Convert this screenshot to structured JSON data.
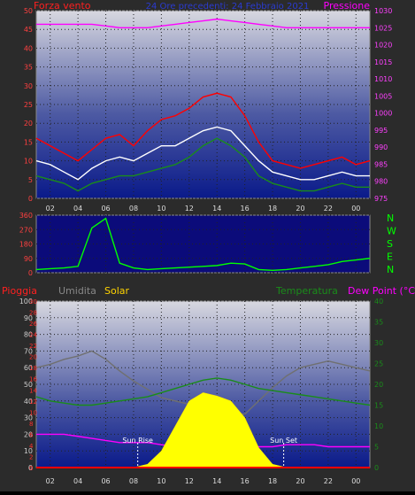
{
  "header": {
    "left_title": "Forza vento",
    "center_title": "24 Ore precedenti: 24 Febbraio 2021",
    "right_title": "Pressione"
  },
  "colors": {
    "wind_gust": "#ff0000",
    "wind_avg": "#1a8c1a",
    "wind_speed": "#ffffff",
    "pressure": "#ff00ff",
    "direction": "#00ff00",
    "humidity": "#707070",
    "temperature": "#1a8c1a",
    "dewpoint": "#ff00ff",
    "solar": "#ffff00",
    "rain": "#ff0000"
  },
  "x_tick_labels": [
    "02",
    "04",
    "06",
    "08",
    "10",
    "12",
    "14",
    "16",
    "18",
    "20",
    "22",
    "00"
  ],
  "chart_data": [
    {
      "type": "line",
      "title": "24 Ore precedenti: 24 Febbraio 2021",
      "ylabel": "Forza vento",
      "y2label": "Pressione",
      "ylim": [
        0,
        50
      ],
      "y2lim": [
        975,
        1030
      ],
      "y_ticks": [
        0,
        5,
        10,
        15,
        20,
        25,
        30,
        35,
        40,
        45,
        50
      ],
      "y2_ticks": [
        975,
        980,
        985,
        990,
        995,
        1000,
        1005,
        1010,
        1015,
        1020,
        1025,
        1030
      ],
      "x": [
        0,
        1,
        2,
        3,
        4,
        5,
        6,
        7,
        8,
        9,
        10,
        11,
        12,
        13,
        14,
        15,
        16,
        17,
        18,
        19,
        20,
        21,
        22,
        23,
        24
      ],
      "series": [
        {
          "name": "gust",
          "color": "#ff0000",
          "values": [
            16,
            14,
            12,
            10,
            13,
            16,
            17,
            14,
            18,
            21,
            22,
            24,
            27,
            28,
            27,
            22,
            15,
            10,
            9,
            8,
            9,
            10,
            11,
            9,
            10
          ]
        },
        {
          "name": "speed",
          "color": "#ffffff",
          "values": [
            10,
            9,
            7,
            5,
            8,
            10,
            11,
            10,
            12,
            14,
            14,
            16,
            18,
            19,
            18,
            14,
            10,
            7,
            6,
            5,
            5,
            6,
            7,
            6,
            6
          ]
        },
        {
          "name": "avg",
          "color": "#1a8c1a",
          "values": [
            6,
            5,
            4,
            2,
            4,
            5,
            6,
            6,
            7,
            8,
            9,
            11,
            14,
            16,
            14,
            11,
            6,
            4,
            3,
            2,
            2,
            3,
            4,
            3,
            3
          ]
        },
        {
          "name": "pressure",
          "axis": "right",
          "color": "#ff00ff",
          "values": [
            1026,
            1026,
            1026,
            1026,
            1026,
            1025.5,
            1025,
            1025,
            1025,
            1025.5,
            1026,
            1026.5,
            1027,
            1027.5,
            1027,
            1026.5,
            1026,
            1025.5,
            1025,
            1025,
            1025,
            1025,
            1025,
            1025,
            1025
          ]
        }
      ]
    },
    {
      "type": "line",
      "ylabel": "",
      "ylim": [
        0,
        360
      ],
      "y_ticks": [
        0,
        90,
        180,
        270,
        360
      ],
      "compass_labels": [
        "N",
        "W",
        "S",
        "E",
        "N"
      ],
      "x": [
        0,
        1,
        2,
        3,
        4,
        5,
        6,
        7,
        8,
        9,
        10,
        11,
        12,
        13,
        14,
        15,
        16,
        17,
        18,
        19,
        20,
        21,
        22,
        23,
        24
      ],
      "series": [
        {
          "name": "direction",
          "color": "#00ff00",
          "values": [
            20,
            25,
            30,
            40,
            280,
            340,
            60,
            30,
            20,
            25,
            30,
            35,
            40,
            45,
            60,
            55,
            20,
            15,
            20,
            30,
            40,
            50,
            70,
            80,
            90
          ]
        }
      ]
    },
    {
      "type": "line",
      "left_labels": [
        "Pioggia",
        "Umidita",
        "Solar"
      ],
      "right_labels": [
        "Temperatura",
        "Dew Point (°C)"
      ],
      "ylim": [
        0,
        100
      ],
      "y_ticks": [
        0,
        10,
        20,
        30,
        40,
        50,
        60,
        70,
        80,
        90,
        100
      ],
      "y_rain_ticks": [
        0,
        2,
        4,
        6,
        8,
        10,
        12,
        14,
        16,
        18,
        20,
        22,
        24,
        26,
        28,
        30
      ],
      "y2lim": [
        0,
        40
      ],
      "y2_ticks": [
        0,
        5,
        10,
        15,
        20,
        25,
        30,
        35,
        40
      ],
      "annotations": [
        "Sun Rise",
        "Sun Set"
      ],
      "x_tick_labels_bottom": [
        "02",
        "04",
        "06",
        "08",
        "10",
        "12",
        "14",
        "16",
        "18",
        "20",
        "22",
        "00"
      ],
      "x_extra_labels": [
        "Sun Rise",
        "Sun Set"
      ],
      "x": [
        0,
        1,
        2,
        3,
        4,
        5,
        6,
        7,
        8,
        9,
        10,
        11,
        12,
        13,
        14,
        15,
        16,
        17,
        18,
        19,
        20,
        21,
        22,
        23,
        24
      ],
      "series": [
        {
          "name": "humidity",
          "color": "#707070",
          "values": [
            60,
            62,
            65,
            67,
            70,
            65,
            58,
            52,
            47,
            42,
            40,
            38,
            36,
            34,
            33,
            32,
            40,
            48,
            55,
            60,
            62,
            64,
            62,
            60,
            58
          ]
        },
        {
          "name": "temperature",
          "axis": "right",
          "color": "#1a8c1a",
          "values": [
            17,
            16,
            15.5,
            15,
            15,
            15.5,
            16,
            16.5,
            17,
            18,
            19,
            20,
            21,
            21.5,
            21,
            20,
            19,
            18.5,
            18,
            17.5,
            17,
            16.5,
            16,
            15.5,
            15
          ]
        },
        {
          "name": "dewpoint",
          "axis": "right",
          "color": "#ff00ff",
          "values": [
            8,
            8,
            8,
            7.5,
            7,
            6.5,
            6,
            6,
            6,
            5.5,
            5,
            4.5,
            4,
            4,
            4,
            4.5,
            5,
            5,
            5.5,
            5.5,
            5.5,
            5,
            5,
            5,
            5
          ]
        },
        {
          "name": "solar",
          "color": "#ffff00",
          "values": [
            0,
            0,
            0,
            0,
            0,
            0,
            0,
            0,
            2,
            10,
            25,
            40,
            45,
            43,
            40,
            30,
            12,
            2,
            0,
            0,
            0,
            0,
            0,
            0,
            0
          ]
        },
        {
          "name": "rain",
          "color": "#ff0000",
          "values": [
            0,
            0,
            0,
            0,
            0,
            0,
            0,
            0,
            0,
            0,
            0,
            0,
            0,
            0,
            0,
            0,
            0,
            0,
            0,
            0,
            0,
            0,
            0,
            0,
            0
          ]
        }
      ]
    }
  ]
}
